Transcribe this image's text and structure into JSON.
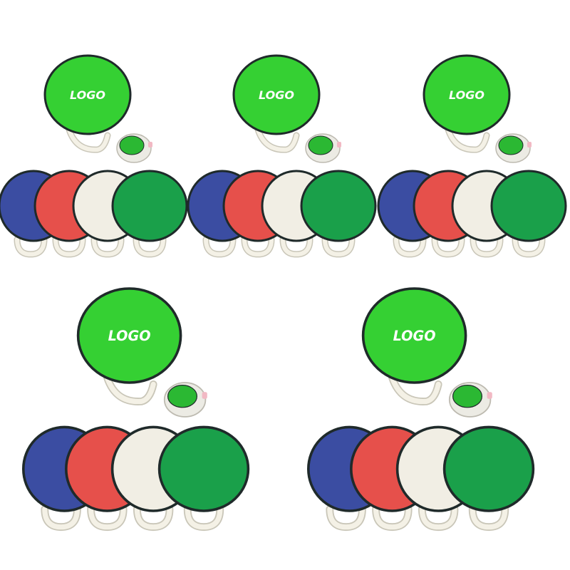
{
  "product_groups": [
    {
      "logo_text": "LOGO",
      "fan_colors": [
        "blue",
        "red",
        "white",
        "green"
      ]
    },
    {
      "logo_text": "LOGO",
      "fan_colors": [
        "blue",
        "red",
        "white",
        "green"
      ]
    },
    {
      "logo_text": "LOGO",
      "fan_colors": [
        "blue",
        "red",
        "white",
        "green"
      ]
    },
    {
      "logo_text": "LOGO",
      "fan_colors": [
        "blue",
        "red",
        "white",
        "green"
      ]
    },
    {
      "logo_text": "LOGO",
      "fan_colors": [
        "blue",
        "red",
        "white",
        "green"
      ]
    }
  ],
  "colors": {
    "hero_green": "#35d033",
    "blue": "#3b4da2",
    "red": "#e6504b",
    "white": "#f1eee4",
    "green": "#1aa04a",
    "rim": "#1f2a2a",
    "handle": "#f4f1e6",
    "handle_stroke": "#c9c6b8"
  }
}
